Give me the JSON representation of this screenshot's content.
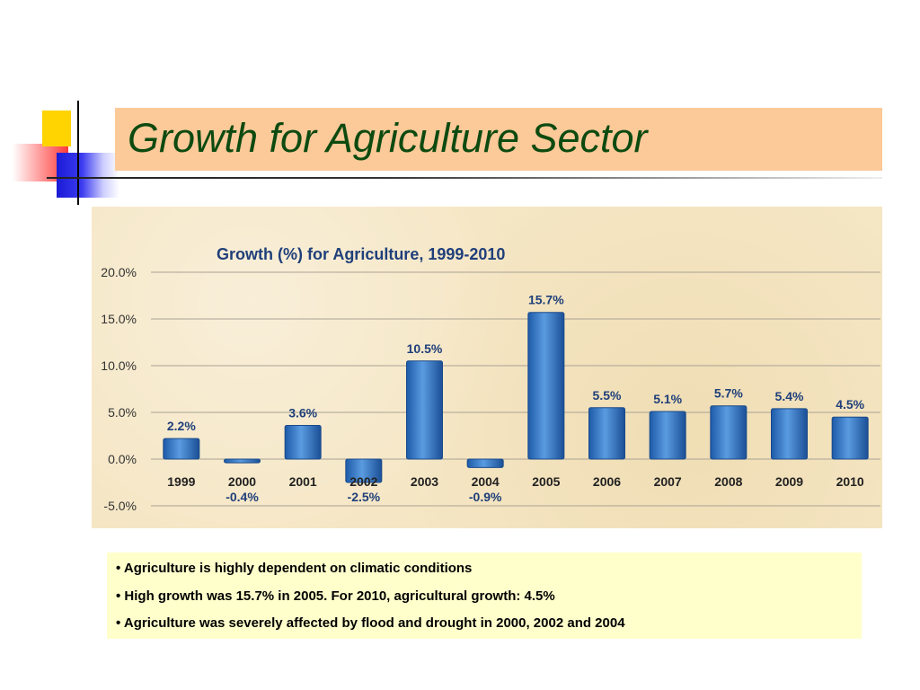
{
  "slide": {
    "title": "Growth for Agriculture Sector",
    "bullets": [
      "• Agriculture is highly dependent on climatic conditions",
      "• High growth was 15.7% in 2005. For 2010, agricultural growth: 4.5%",
      "• Agriculture was severely affected by flood and drought in 2000, 2002 and 2004"
    ]
  },
  "colors": {
    "title_bar": "#fcc998",
    "title_text": "#0d4a10",
    "bar_fill": "#2e73c4",
    "label_text": "#1f3f7a",
    "bullet_box": "#ffffcc"
  },
  "chart_data": {
    "type": "bar",
    "title": "Growth (%) for Agriculture, 1999-2010",
    "xlabel": "",
    "ylabel": "",
    "categories": [
      "1999",
      "2000",
      "2001",
      "2002",
      "2003",
      "2004",
      "2005",
      "2006",
      "2007",
      "2008",
      "2009",
      "2010"
    ],
    "values": [
      2.2,
      -0.4,
      3.6,
      -2.5,
      10.5,
      -0.9,
      15.7,
      5.5,
      5.1,
      5.7,
      5.4,
      4.5
    ],
    "data_labels": [
      "2.2%",
      "-0.4%",
      "3.6%",
      "-2.5%",
      "10.5%",
      "-0.9%",
      "15.7%",
      "5.5%",
      "5.1%",
      "5.7%",
      "5.4%",
      "4.5%"
    ],
    "y_ticks": [
      20,
      15,
      10,
      5,
      0,
      -5
    ],
    "y_tick_labels": [
      "20.0%",
      "15.0%",
      "10.0%",
      "5.0%",
      "0.0%",
      "-5.0%"
    ],
    "ylim": [
      -5,
      20
    ],
    "grid": true,
    "legend": "none"
  }
}
